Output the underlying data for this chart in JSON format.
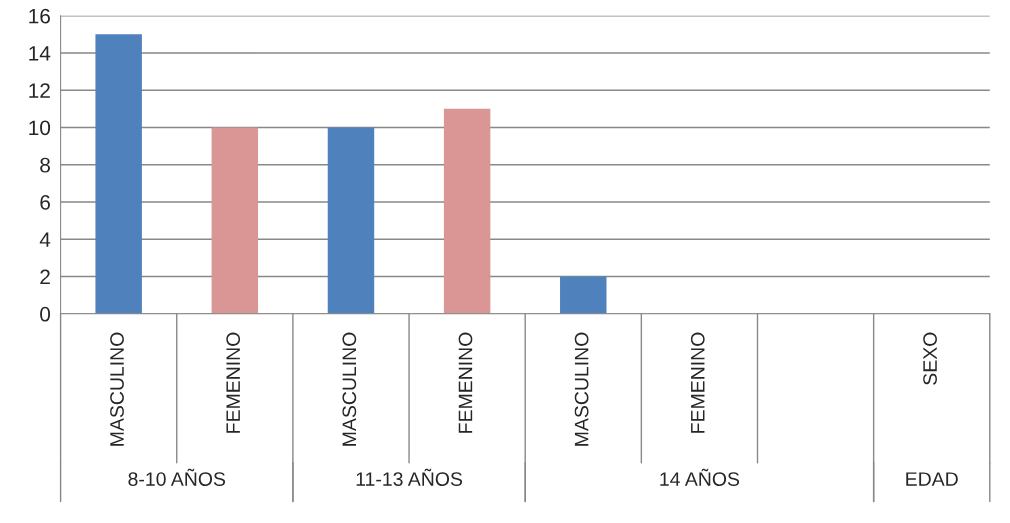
{
  "chart_data": {
    "type": "bar",
    "categories": [
      "MASCULINO",
      "FEMENINO",
      "MASCULINO",
      "FEMENINO",
      "MASCULINO",
      "FEMENINO",
      null,
      "SEXO"
    ],
    "values": [
      15,
      10,
      10,
      11,
      2,
      0,
      null,
      0
    ],
    "colors": [
      "#4f81bd",
      "#d99694",
      "#4f81bd",
      "#d99694",
      "#4f81bd",
      "#d99694",
      "#4f81bd",
      "#d99694"
    ],
    "ylim": [
      0,
      16
    ],
    "yticks": [
      0,
      2,
      4,
      6,
      8,
      10,
      12,
      14,
      16
    ],
    "grid": "y",
    "annotations": [
      "8-10 AÑOS",
      "11-13 AÑOS",
      "14 AÑOS",
      "EDAD"
    ]
  }
}
